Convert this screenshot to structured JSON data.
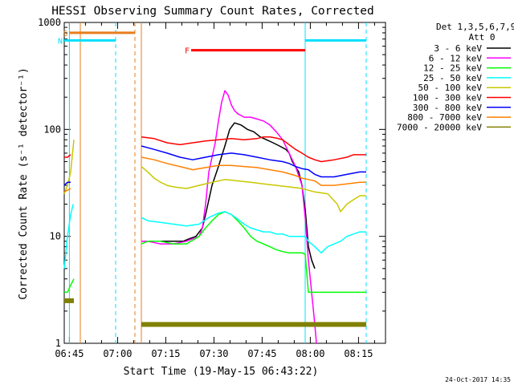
{
  "chart_data": {
    "type": "line",
    "title": "HESSI Observing Summary Count Rates, Corrected",
    "xlabel": "Start Time (19-May-15 06:43:22)",
    "ylabel": "Corrected Count Rate (s⁻¹ detector⁻¹)",
    "footer": "24-Oct-2017 14:35",
    "y_scale": "log",
    "ylim": [
      1,
      1000
    ],
    "xlim_minutes_after_0643": [
      0,
      100
    ],
    "x_ticks": [
      {
        "label": "06:45",
        "t": 1.6
      },
      {
        "label": "07:00",
        "t": 16.6
      },
      {
        "label": "07:15",
        "t": 31.6
      },
      {
        "label": "07:30",
        "t": 46.6
      },
      {
        "label": "07:45",
        "t": 61.6
      },
      {
        "label": "08:00",
        "t": 76.6
      },
      {
        "label": "08:15",
        "t": 91.6
      }
    ],
    "y_ticks": [
      {
        "label": "1",
        "v": 1
      },
      {
        "label": "10",
        "v": 10
      },
      {
        "label": "100",
        "v": 100
      },
      {
        "label": "1000",
        "v": 1000
      }
    ],
    "legend": {
      "header": [
        "Det 1,3,5,6,7,9,",
        "Att 0"
      ],
      "placement": "right"
    },
    "flags": [
      {
        "label": "S",
        "color": "#e87d1e",
        "t_start": 1.6,
        "t_end": 22.0,
        "y": 800
      },
      {
        "label": "N",
        "color": "#00e0ff",
        "t_start": 0.0,
        "t_end": 16.0,
        "y": 680
      },
      {
        "label": "F",
        "color": "#ff0000",
        "t_start": 39.5,
        "t_end": 75.0,
        "y": 550
      },
      {
        "label": "",
        "color": "#00e0ff",
        "t_start": 75.0,
        "t_end": 94.0,
        "y": 680
      }
    ],
    "vlines": [
      {
        "t": 1.6,
        "color": "#00e0ff",
        "style": "solid"
      },
      {
        "t": 5.0,
        "color": "#e87d1e",
        "style": "solid"
      },
      {
        "t": 16.0,
        "color": "#00e0ff",
        "style": "dashed"
      },
      {
        "t": 22.0,
        "color": "#e87d1e",
        "style": "dashed"
      },
      {
        "t": 24.0,
        "color": "#00e0ff",
        "style": "solid"
      },
      {
        "t": 24.0,
        "color": "#e87d1e",
        "style": "solid"
      },
      {
        "t": 75.0,
        "color": "#00e0ff",
        "style": "solid"
      },
      {
        "t": 94.0,
        "color": "#00e0ff",
        "style": "dashed"
      }
    ],
    "series": [
      {
        "name": "3 - 6 keV",
        "color": "#000000",
        "segments": [
          {
            "x": [
              24,
              26,
              30,
              34,
              37,
              39,
              41,
              43,
              44,
              46,
              48,
              50,
              51.5,
              53,
              55,
              57,
              59,
              61,
              63,
              65,
              67,
              69,
              70,
              71,
              73,
              74,
              75,
              76,
              77,
              78
            ],
            "y": [
              9,
              9,
              9,
              9,
              9,
              9.5,
              10,
              12,
              16,
              30,
              45,
              70,
              100,
              115,
              110,
              100,
              95,
              85,
              80,
              75,
              70,
              65,
              60,
              50,
              40,
              30,
              18,
              8,
              6,
              5
            ]
          }
        ]
      },
      {
        "name": "6 - 12 keV",
        "color": "#ff00ff",
        "segments": [
          {
            "x": [
              24,
              26,
              30,
              34,
              38,
              40,
              42,
              43,
              44,
              45,
              46,
              47,
              48,
              49,
              50,
              51,
              52,
              53,
              54,
              56,
              58,
              60,
              62,
              64,
              66,
              68,
              70,
              72,
              74,
              75,
              76,
              77,
              78,
              78.5
            ],
            "y": [
              9,
              9,
              8.5,
              8.5,
              9,
              9.5,
              10,
              12,
              20,
              40,
              55,
              75,
              120,
              180,
              230,
              210,
              170,
              150,
              140,
              130,
              130,
              125,
              120,
              110,
              95,
              80,
              60,
              45,
              30,
              15,
              6,
              3,
              1.5,
              1
            ]
          }
        ]
      },
      {
        "name": "12 - 25 keV",
        "color": "#00ff00",
        "segments": [
          {
            "x": [
              0,
              1,
              2,
              3
            ],
            "y": [
              3,
              3,
              3.5,
              4
            ]
          },
          {
            "x": [
              24,
              26,
              30,
              34,
              38,
              42,
              44,
              46,
              48,
              50,
              52,
              54,
              56,
              58,
              60,
              62,
              64,
              66,
              68,
              70,
              72,
              74,
              75,
              76,
              78,
              80,
              82,
              84,
              86,
              88,
              90,
              92,
              94
            ],
            "y": [
              8.5,
              9,
              9,
              8.5,
              8.5,
              10,
              12,
              14,
              16,
              17,
              16,
              14,
              12,
              10,
              9,
              8.5,
              8,
              7.5,
              7.2,
              7,
              7,
              7,
              6.8,
              3,
              3,
              3,
              3,
              3,
              3,
              3,
              3,
              3,
              3
            ]
          }
        ]
      },
      {
        "name": "25 - 50 keV",
        "color": "#00ffff",
        "segments": [
          {
            "x": [
              0,
              1,
              2,
              2.8
            ],
            "y": [
              5,
              10,
              16,
              20
            ]
          },
          {
            "x": [
              24,
              26,
              30,
              34,
              38,
              42,
              45,
              48,
              50,
              52,
              54,
              56,
              58,
              60,
              62,
              64,
              66,
              68,
              70,
              72,
              74,
              75,
              76,
              78,
              80,
              81,
              82,
              84,
              86,
              88,
              90,
              92,
              94
            ],
            "y": [
              15,
              14,
              13.5,
              13,
              12.5,
              13,
              15,
              16.5,
              17,
              16,
              14.5,
              13,
              12,
              11.5,
              11,
              11,
              10.5,
              10.5,
              10,
              10,
              10,
              10,
              9,
              8,
              7,
              7.5,
              8,
              8.5,
              9,
              10,
              10.5,
              11,
              11
            ]
          }
        ]
      },
      {
        "name": "50 - 100 keV",
        "color": "#c8c800",
        "segments": [
          {
            "x": [
              0,
              1,
              2,
              3
            ],
            "y": [
              25,
              30,
              40,
              80
            ]
          },
          {
            "x": [
              24,
              26,
              28,
              30,
              32,
              34,
              38,
              42,
              46,
              50,
              54,
              58,
              62,
              66,
              70,
              74,
              78,
              82,
              85,
              86,
              88,
              90,
              92,
              94
            ],
            "y": [
              45,
              40,
              35,
              32,
              30,
              29,
              28,
              30,
              32,
              34,
              33,
              32,
              31,
              30,
              29,
              28,
              26,
              25,
              20,
              17,
              20,
              22,
              24,
              24
            ]
          }
        ]
      },
      {
        "name": "100 - 300 keV",
        "color": "#ff0000",
        "segments": [
          {
            "x": [
              0,
              1,
              2
            ],
            "y": [
              55,
              55,
              58
            ]
          },
          {
            "x": [
              24,
              28,
              32,
              36,
              40,
              44,
              48,
              52,
              56,
              60,
              62,
              64,
              66,
              68,
              70,
              72,
              74,
              76,
              78,
              80,
              84,
              88,
              90,
              92,
              94
            ],
            "y": [
              85,
              82,
              75,
              72,
              75,
              78,
              80,
              82,
              80,
              82,
              85,
              85,
              83,
              80,
              72,
              65,
              60,
              55,
              52,
              50,
              52,
              55,
              58,
              58,
              58
            ]
          }
        ]
      },
      {
        "name": "300 - 800 keV",
        "color": "#0000ff",
        "segments": [
          {
            "x": [
              0,
              1,
              2
            ],
            "y": [
              30,
              32,
              32
            ]
          },
          {
            "x": [
              24,
              28,
              32,
              36,
              40,
              44,
              48,
              52,
              56,
              60,
              64,
              68,
              70,
              72,
              74,
              76,
              78,
              80,
              84,
              88,
              92,
              94
            ],
            "y": [
              70,
              65,
              60,
              55,
              52,
              55,
              58,
              60,
              58,
              55,
              52,
              50,
              48,
              45,
              43,
              42,
              38,
              36,
              36,
              38,
              40,
              40
            ]
          }
        ]
      },
      {
        "name": "800 - 7000 keV",
        "color": "#ff8000",
        "segments": [
          {
            "x": [
              0,
              1,
              2
            ],
            "y": [
              26,
              27,
              28
            ]
          },
          {
            "x": [
              24,
              28,
              32,
              36,
              40,
              44,
              48,
              52,
              56,
              60,
              64,
              68,
              72,
              74,
              76,
              78,
              80,
              84,
              88,
              92,
              94
            ],
            "y": [
              55,
              52,
              48,
              45,
              42,
              44,
              46,
              46,
              45,
              44,
              42,
              40,
              37,
              35,
              34,
              33,
              30,
              30,
              31,
              32,
              32
            ]
          }
        ]
      },
      {
        "name": "7000 - 20000 keV",
        "color": "#808000",
        "segments": [
          {
            "x": [
              0,
              3
            ],
            "y": [
              2.5,
              2.5
            ]
          },
          {
            "x": [
              24,
              94
            ],
            "y": [
              1.5,
              1.5
            ]
          }
        ]
      }
    ]
  }
}
